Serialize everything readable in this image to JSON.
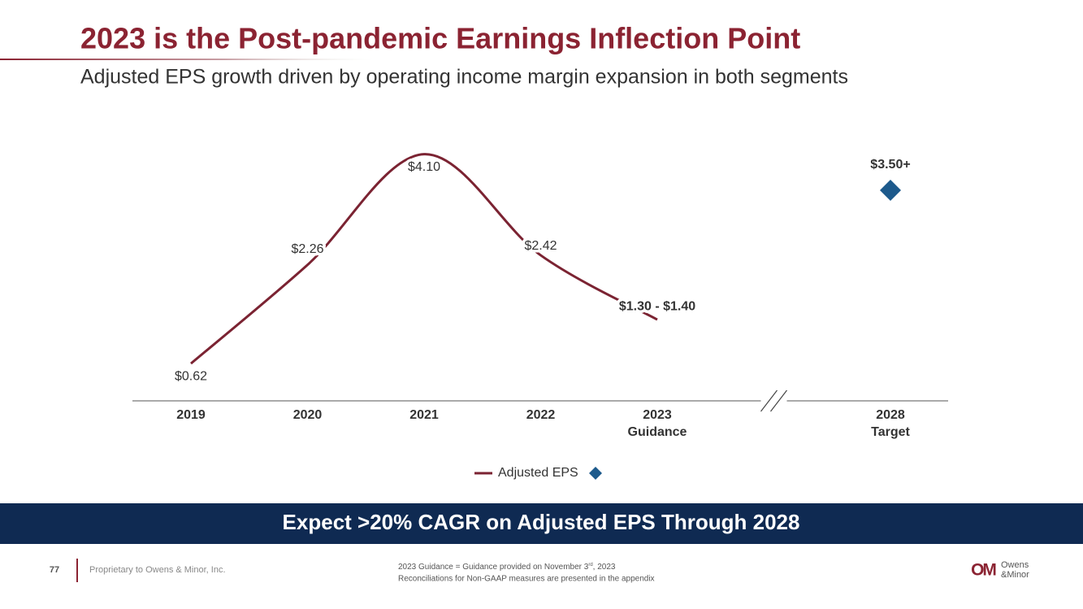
{
  "slide": {
    "title": "2023 is the Post-pandemic Earnings Inflection Point",
    "subtitle": "Adjusted EPS growth driven by operating income margin expansion in both segments",
    "banner": "Expect >20% CAGR on Adjusted EPS Through 2028",
    "page_number": "77",
    "proprietary": "Proprietary to Owens & Minor, Inc.",
    "footnote_1": [
      "2023 Guidance = Guidance provided on November 3",
      "rd",
      ", 2023"
    ],
    "footnote_2": "Reconciliations for Non-GAAP measures are presented in the appendix",
    "logo": [
      "OM",
      "Owens",
      "&Minor"
    ]
  },
  "chart_data": {
    "type": "line",
    "categories": [
      [
        "2019"
      ],
      [
        "2020"
      ],
      [
        "2021"
      ],
      [
        "2022"
      ],
      [
        "2023",
        "Guidance"
      ],
      null,
      [
        "2028",
        "Target"
      ]
    ],
    "series": [
      {
        "name": "Adjusted EPS",
        "color": "#7b2332",
        "smooth": true,
        "values": [
          0.62,
          2.26,
          4.1,
          2.42,
          1.35,
          null,
          null
        ],
        "value_labels": [
          "$0.62",
          "$2.26",
          "$4.10",
          "$2.42",
          "$1.30 - $1.40",
          null,
          null
        ]
      },
      {
        "color": "#1d5a8c",
        "marker": "diamond",
        "values": [
          null,
          null,
          null,
          null,
          null,
          null,
          3.5
        ],
        "value_labels": [
          null,
          null,
          null,
          null,
          null,
          null,
          "$3.50+"
        ]
      }
    ],
    "ylim": [
      0,
      4.5
    ],
    "axis_break": true,
    "grid": false
  }
}
